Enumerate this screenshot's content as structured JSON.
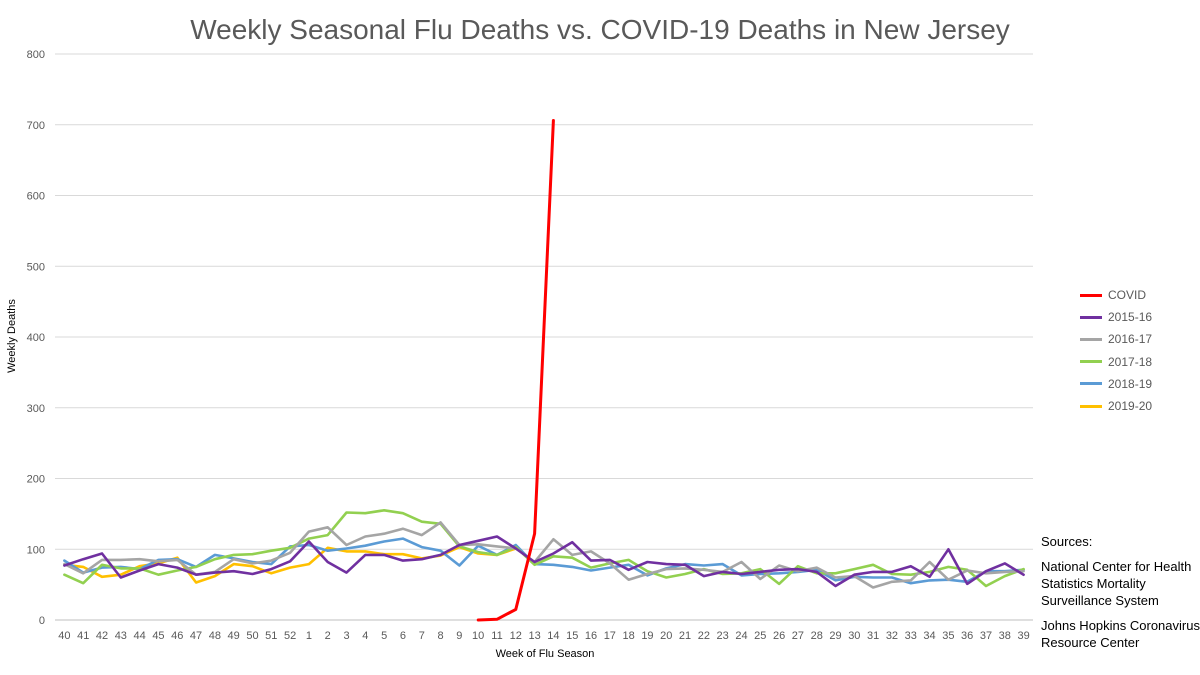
{
  "chart_data": {
    "type": "line",
    "title": "Weekly Seasonal Flu Deaths vs. COVID-19 Deaths in New Jersey",
    "xlabel": "Week of Flu Season",
    "ylabel": "Weekly Deaths",
    "ylim": [
      0,
      800
    ],
    "yticks": [
      0,
      100,
      200,
      300,
      400,
      500,
      600,
      700,
      800
    ],
    "grid": true,
    "legend_position": "right",
    "categories": [
      "40",
      "41",
      "42",
      "43",
      "44",
      "45",
      "46",
      "47",
      "48",
      "49",
      "50",
      "51",
      "52",
      "1",
      "2",
      "3",
      "4",
      "5",
      "6",
      "7",
      "8",
      "9",
      "10",
      "11",
      "12",
      "13",
      "14",
      "15",
      "16",
      "17",
      "18",
      "19",
      "20",
      "21",
      "22",
      "23",
      "24",
      "25",
      "26",
      "27",
      "28",
      "29",
      "30",
      "31",
      "32",
      "33",
      "34",
      "35",
      "36",
      "37",
      "38",
      "39"
    ],
    "series": [
      {
        "name": "COVID",
        "color": "#ff0000",
        "values": [
          null,
          null,
          null,
          null,
          null,
          null,
          null,
          null,
          null,
          null,
          null,
          null,
          null,
          null,
          null,
          null,
          null,
          null,
          null,
          null,
          null,
          null,
          0,
          1,
          15,
          122,
          706,
          null,
          null,
          null,
          null,
          null,
          null,
          null,
          null,
          null,
          null,
          null,
          null,
          null,
          null,
          null,
          null,
          null,
          null,
          null,
          null,
          null,
          null,
          null,
          null,
          null
        ]
      },
      {
        "name": "2015-16",
        "color": "#7030a0",
        "values": [
          77,
          86,
          94,
          60,
          70,
          79,
          74,
          64,
          67,
          69,
          65,
          72,
          83,
          111,
          82,
          67,
          92,
          92,
          84,
          86,
          92,
          106,
          112,
          118,
          101,
          82,
          94,
          110,
          84,
          85,
          71,
          82,
          79,
          78,
          62,
          68,
          65,
          68,
          71,
          72,
          68,
          48,
          64,
          68,
          68,
          76,
          61,
          100,
          51,
          69,
          80,
          64
        ]
      },
      {
        "name": "2016-17",
        "color": "#a5a5a5",
        "values": [
          79,
          66,
          85,
          85,
          86,
          83,
          85,
          64,
          68,
          86,
          80,
          84,
          95,
          125,
          131,
          106,
          118,
          122,
          129,
          120,
          138,
          106,
          107,
          104,
          101,
          82,
          114,
          92,
          97,
          80,
          57,
          65,
          72,
          73,
          71,
          68,
          82,
          58,
          77,
          69,
          74,
          60,
          62,
          46,
          54,
          56,
          82,
          57,
          70,
          66,
          68,
          69
        ]
      },
      {
        "name": "2017-18",
        "color": "#92d050",
        "values": [
          64,
          52,
          78,
          73,
          73,
          64,
          70,
          75,
          86,
          92,
          93,
          98,
          102,
          115,
          120,
          152,
          151,
          155,
          151,
          139,
          136,
          104,
          96,
          92,
          103,
          78,
          90,
          88,
          74,
          80,
          85,
          69,
          60,
          65,
          72,
          65,
          66,
          72,
          51,
          76,
          66,
          66,
          72,
          78,
          65,
          64,
          68,
          75,
          71,
          48,
          62,
          72
        ]
      },
      {
        "name": "2018-19",
        "color": "#5b9bd5",
        "values": [
          84,
          67,
          74,
          75,
          72,
          85,
          86,
          75,
          92,
          87,
          82,
          79,
          104,
          106,
          98,
          101,
          105,
          111,
          115,
          103,
          98,
          77,
          105,
          92,
          106,
          79,
          78,
          75,
          70,
          74,
          78,
          63,
          73,
          79,
          77,
          79,
          63,
          65,
          66,
          68,
          71,
          56,
          61,
          60,
          60,
          52,
          56,
          57,
          54,
          69,
          69,
          71
        ]
      },
      {
        "name": "2019-20",
        "color": "#ffc000",
        "values": [
          78,
          75,
          61,
          64,
          76,
          80,
          88,
          53,
          62,
          79,
          76,
          66,
          74,
          79,
          102,
          97,
          97,
          93,
          93,
          87,
          91,
          103,
          94,
          92,
          101,
          null,
          null,
          null,
          null,
          null,
          null,
          null,
          null,
          null,
          null,
          null,
          null,
          null,
          null,
          null,
          null,
          null,
          null,
          null,
          null,
          null,
          null,
          null,
          null,
          null,
          null,
          null
        ]
      }
    ],
    "sources": {
      "heading": "Sources:",
      "items": [
        "National Center for Health Statistics Mortality Surveillance System",
        "Johns Hopkins Coronavirus Resource Center"
      ]
    }
  }
}
